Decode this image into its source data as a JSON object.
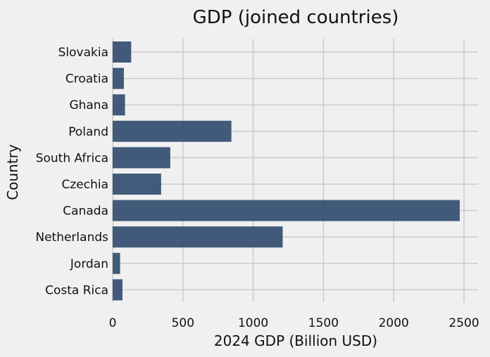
{
  "chart_data": {
    "type": "bar",
    "orientation": "horizontal",
    "title": "GDP (joined countries)",
    "xlabel": "2024 GDP (Billion USD)",
    "ylabel": "Country",
    "categories": [
      "Slovakia",
      "Croatia",
      "Ghana",
      "Poland",
      "South Africa",
      "Czechia",
      "Canada",
      "Netherlands",
      "Jordan",
      "Costa Rica"
    ],
    "values": [
      132,
      80,
      88,
      845,
      410,
      345,
      2470,
      1210,
      53,
      70
    ],
    "xlim": [
      0,
      2600
    ],
    "xticks": [
      0,
      500,
      1000,
      1500,
      2000,
      2500
    ],
    "grid": true,
    "legend": "none",
    "colors": {
      "bar": "#2f4a6e",
      "grid": "#cbcbcb",
      "background": "#f0f0f0"
    }
  }
}
